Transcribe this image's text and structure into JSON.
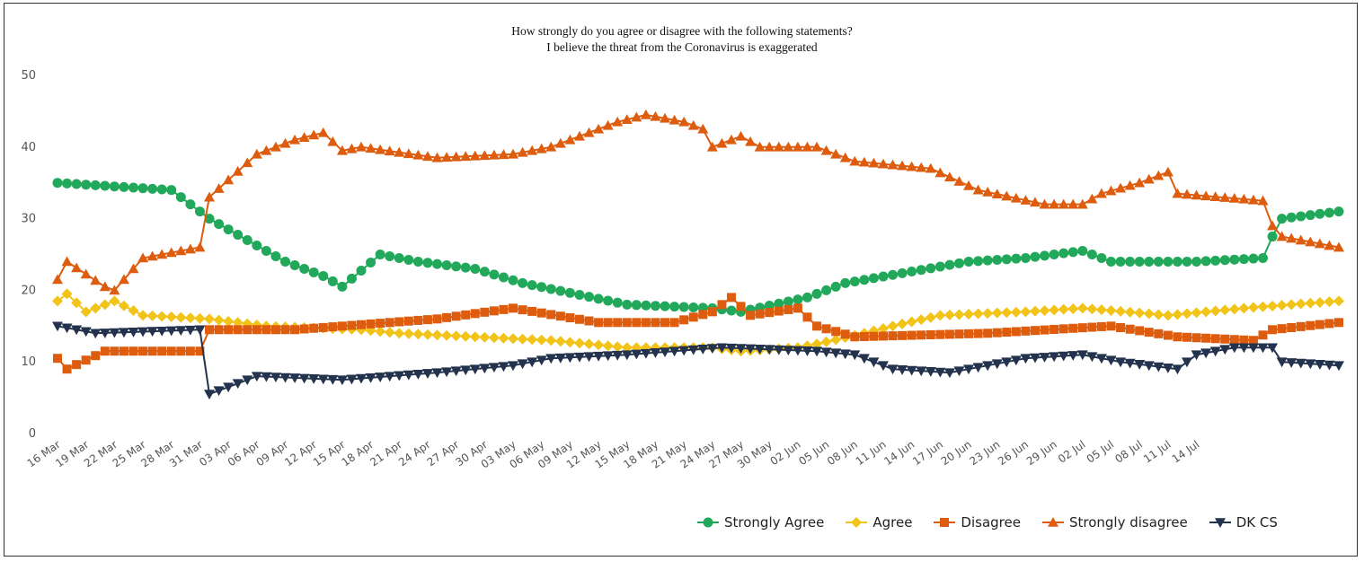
{
  "chart_data": {
    "type": "line",
    "title": "How strongly do you agree or disagree with the following statements?",
    "subtitle": "I believe the threat from the Coronavirus is exaggerated",
    "xlabel": "",
    "ylabel": "",
    "ylim": [
      0,
      50
    ],
    "yticks": [
      "0",
      "10",
      "20",
      "30",
      "40",
      "50"
    ],
    "grid": false,
    "legend_position": "bottom-right",
    "x_tick_labels": [
      "16 Mar",
      "19 Mar",
      "22 Mar",
      "25 Mar",
      "28 Mar",
      "31 Mar",
      "03 Apr",
      "06 Apr",
      "09 Apr",
      "12 Apr",
      "15 Apr",
      "18 Apr",
      "21 Apr",
      "24 Apr",
      "27 Apr",
      "30 Apr",
      "03 May",
      "06 May",
      "09 May",
      "12 May",
      "15 May",
      "18 May",
      "21 May",
      "24 May",
      "27 May",
      "30 May",
      "02 Jun",
      "05 Jun",
      "08 Jun",
      "11 Jun",
      "14 Jun",
      "17 Jun",
      "20 Jun",
      "23 Jun",
      "26 Jun",
      "29 Jun",
      "02 Jul",
      "05 Jul",
      "08 Jul",
      "11 Jul",
      "14 Jul"
    ],
    "x_first_date": "16 Mar",
    "series": [
      {
        "name": "Strongly Agree",
        "color": "#22a85a",
        "marker": "circle",
        "values": [
          [
            0,
            35
          ],
          [
            12,
            34
          ],
          [
            16,
            30
          ],
          [
            24,
            24
          ],
          [
            28,
            22
          ],
          [
            30,
            20.5
          ],
          [
            34,
            25
          ],
          [
            38,
            24
          ],
          [
            44,
            23
          ],
          [
            49,
            21
          ],
          [
            60,
            18
          ],
          [
            69,
            17.5
          ],
          [
            72,
            17
          ],
          [
            79,
            19
          ],
          [
            83,
            21
          ],
          [
            96,
            24
          ],
          [
            102,
            24.5
          ],
          [
            108,
            25.5
          ],
          [
            111,
            24
          ],
          [
            120,
            24
          ],
          [
            127,
            24.5
          ],
          [
            128,
            27.5
          ],
          [
            129,
            30
          ],
          [
            135,
            31
          ]
        ]
      },
      {
        "name": "Agree",
        "color": "#f2c318",
        "marker": "diamond",
        "values": [
          [
            0,
            18.5
          ],
          [
            1,
            19.5
          ],
          [
            3,
            17
          ],
          [
            6,
            18.5
          ],
          [
            9,
            16.5
          ],
          [
            16,
            16
          ],
          [
            22,
            15
          ],
          [
            32,
            14.5
          ],
          [
            36,
            14
          ],
          [
            52,
            13
          ],
          [
            60,
            12
          ],
          [
            69,
            12
          ],
          [
            72,
            11.5
          ],
          [
            78,
            12
          ],
          [
            80,
            12.5
          ],
          [
            85,
            14
          ],
          [
            88,
            15
          ],
          [
            93,
            16.5
          ],
          [
            102,
            17
          ],
          [
            108,
            17.5
          ],
          [
            117,
            16.5
          ],
          [
            125,
            17.5
          ],
          [
            135,
            18.5
          ]
        ]
      },
      {
        "name": "Disagree",
        "color": "#dd5c0e",
        "marker": "square",
        "values": [
          [
            0,
            10.5
          ],
          [
            1,
            9
          ],
          [
            5,
            11.5
          ],
          [
            15,
            11.5
          ],
          [
            16,
            14.5
          ],
          [
            25,
            14.5
          ],
          [
            40,
            16
          ],
          [
            48,
            17.5
          ],
          [
            57,
            15.5
          ],
          [
            65,
            15.5
          ],
          [
            69,
            17
          ],
          [
            71,
            19
          ],
          [
            73,
            16.5
          ],
          [
            78,
            17.5
          ],
          [
            80,
            15
          ],
          [
            84,
            13.5
          ],
          [
            98,
            14
          ],
          [
            111,
            15
          ],
          [
            118,
            13.5
          ],
          [
            126,
            13
          ],
          [
            128,
            14.5
          ],
          [
            135,
            15.5
          ]
        ]
      },
      {
        "name": "Strongly disagree",
        "color": "#dd5c0e",
        "marker": "triangle-up",
        "values": [
          [
            0,
            21.5
          ],
          [
            1,
            24
          ],
          [
            5,
            20.5
          ],
          [
            6,
            20
          ],
          [
            9,
            24.5
          ],
          [
            15,
            26
          ],
          [
            16,
            33
          ],
          [
            21,
            39
          ],
          [
            25,
            41
          ],
          [
            28,
            42
          ],
          [
            30,
            39.5
          ],
          [
            32,
            40
          ],
          [
            40,
            38.5
          ],
          [
            48,
            39
          ],
          [
            52,
            40
          ],
          [
            59,
            43.5
          ],
          [
            62,
            44.5
          ],
          [
            66,
            43.5
          ],
          [
            68,
            42.5
          ],
          [
            69,
            40
          ],
          [
            72,
            41.5
          ],
          [
            74,
            40
          ],
          [
            80,
            40
          ],
          [
            84,
            38
          ],
          [
            92,
            37
          ],
          [
            97,
            34
          ],
          [
            104,
            32
          ],
          [
            108,
            32
          ],
          [
            110,
            33.5
          ],
          [
            114,
            35
          ],
          [
            117,
            36.5
          ],
          [
            118,
            33.5
          ],
          [
            127,
            32.5
          ],
          [
            128,
            29
          ],
          [
            129,
            27.5
          ],
          [
            135,
            26
          ]
        ]
      },
      {
        "name": "DK CS",
        "color": "#24334d",
        "marker": "triangle-down",
        "values": [
          [
            0,
            15
          ],
          [
            4,
            14
          ],
          [
            15,
            14.5
          ],
          [
            16,
            5.5
          ],
          [
            21,
            8
          ],
          [
            30,
            7.5
          ],
          [
            40,
            8.5
          ],
          [
            48,
            9.5
          ],
          [
            52,
            10.5
          ],
          [
            60,
            11
          ],
          [
            70,
            12
          ],
          [
            80,
            11.5
          ],
          [
            84,
            11
          ],
          [
            88,
            9
          ],
          [
            94,
            8.5
          ],
          [
            102,
            10.5
          ],
          [
            108,
            11
          ],
          [
            112,
            10
          ],
          [
            118,
            9
          ],
          [
            120,
            11
          ],
          [
            124,
            12
          ],
          [
            128,
            12
          ],
          [
            129,
            10
          ],
          [
            135,
            9.5
          ]
        ]
      }
    ]
  }
}
